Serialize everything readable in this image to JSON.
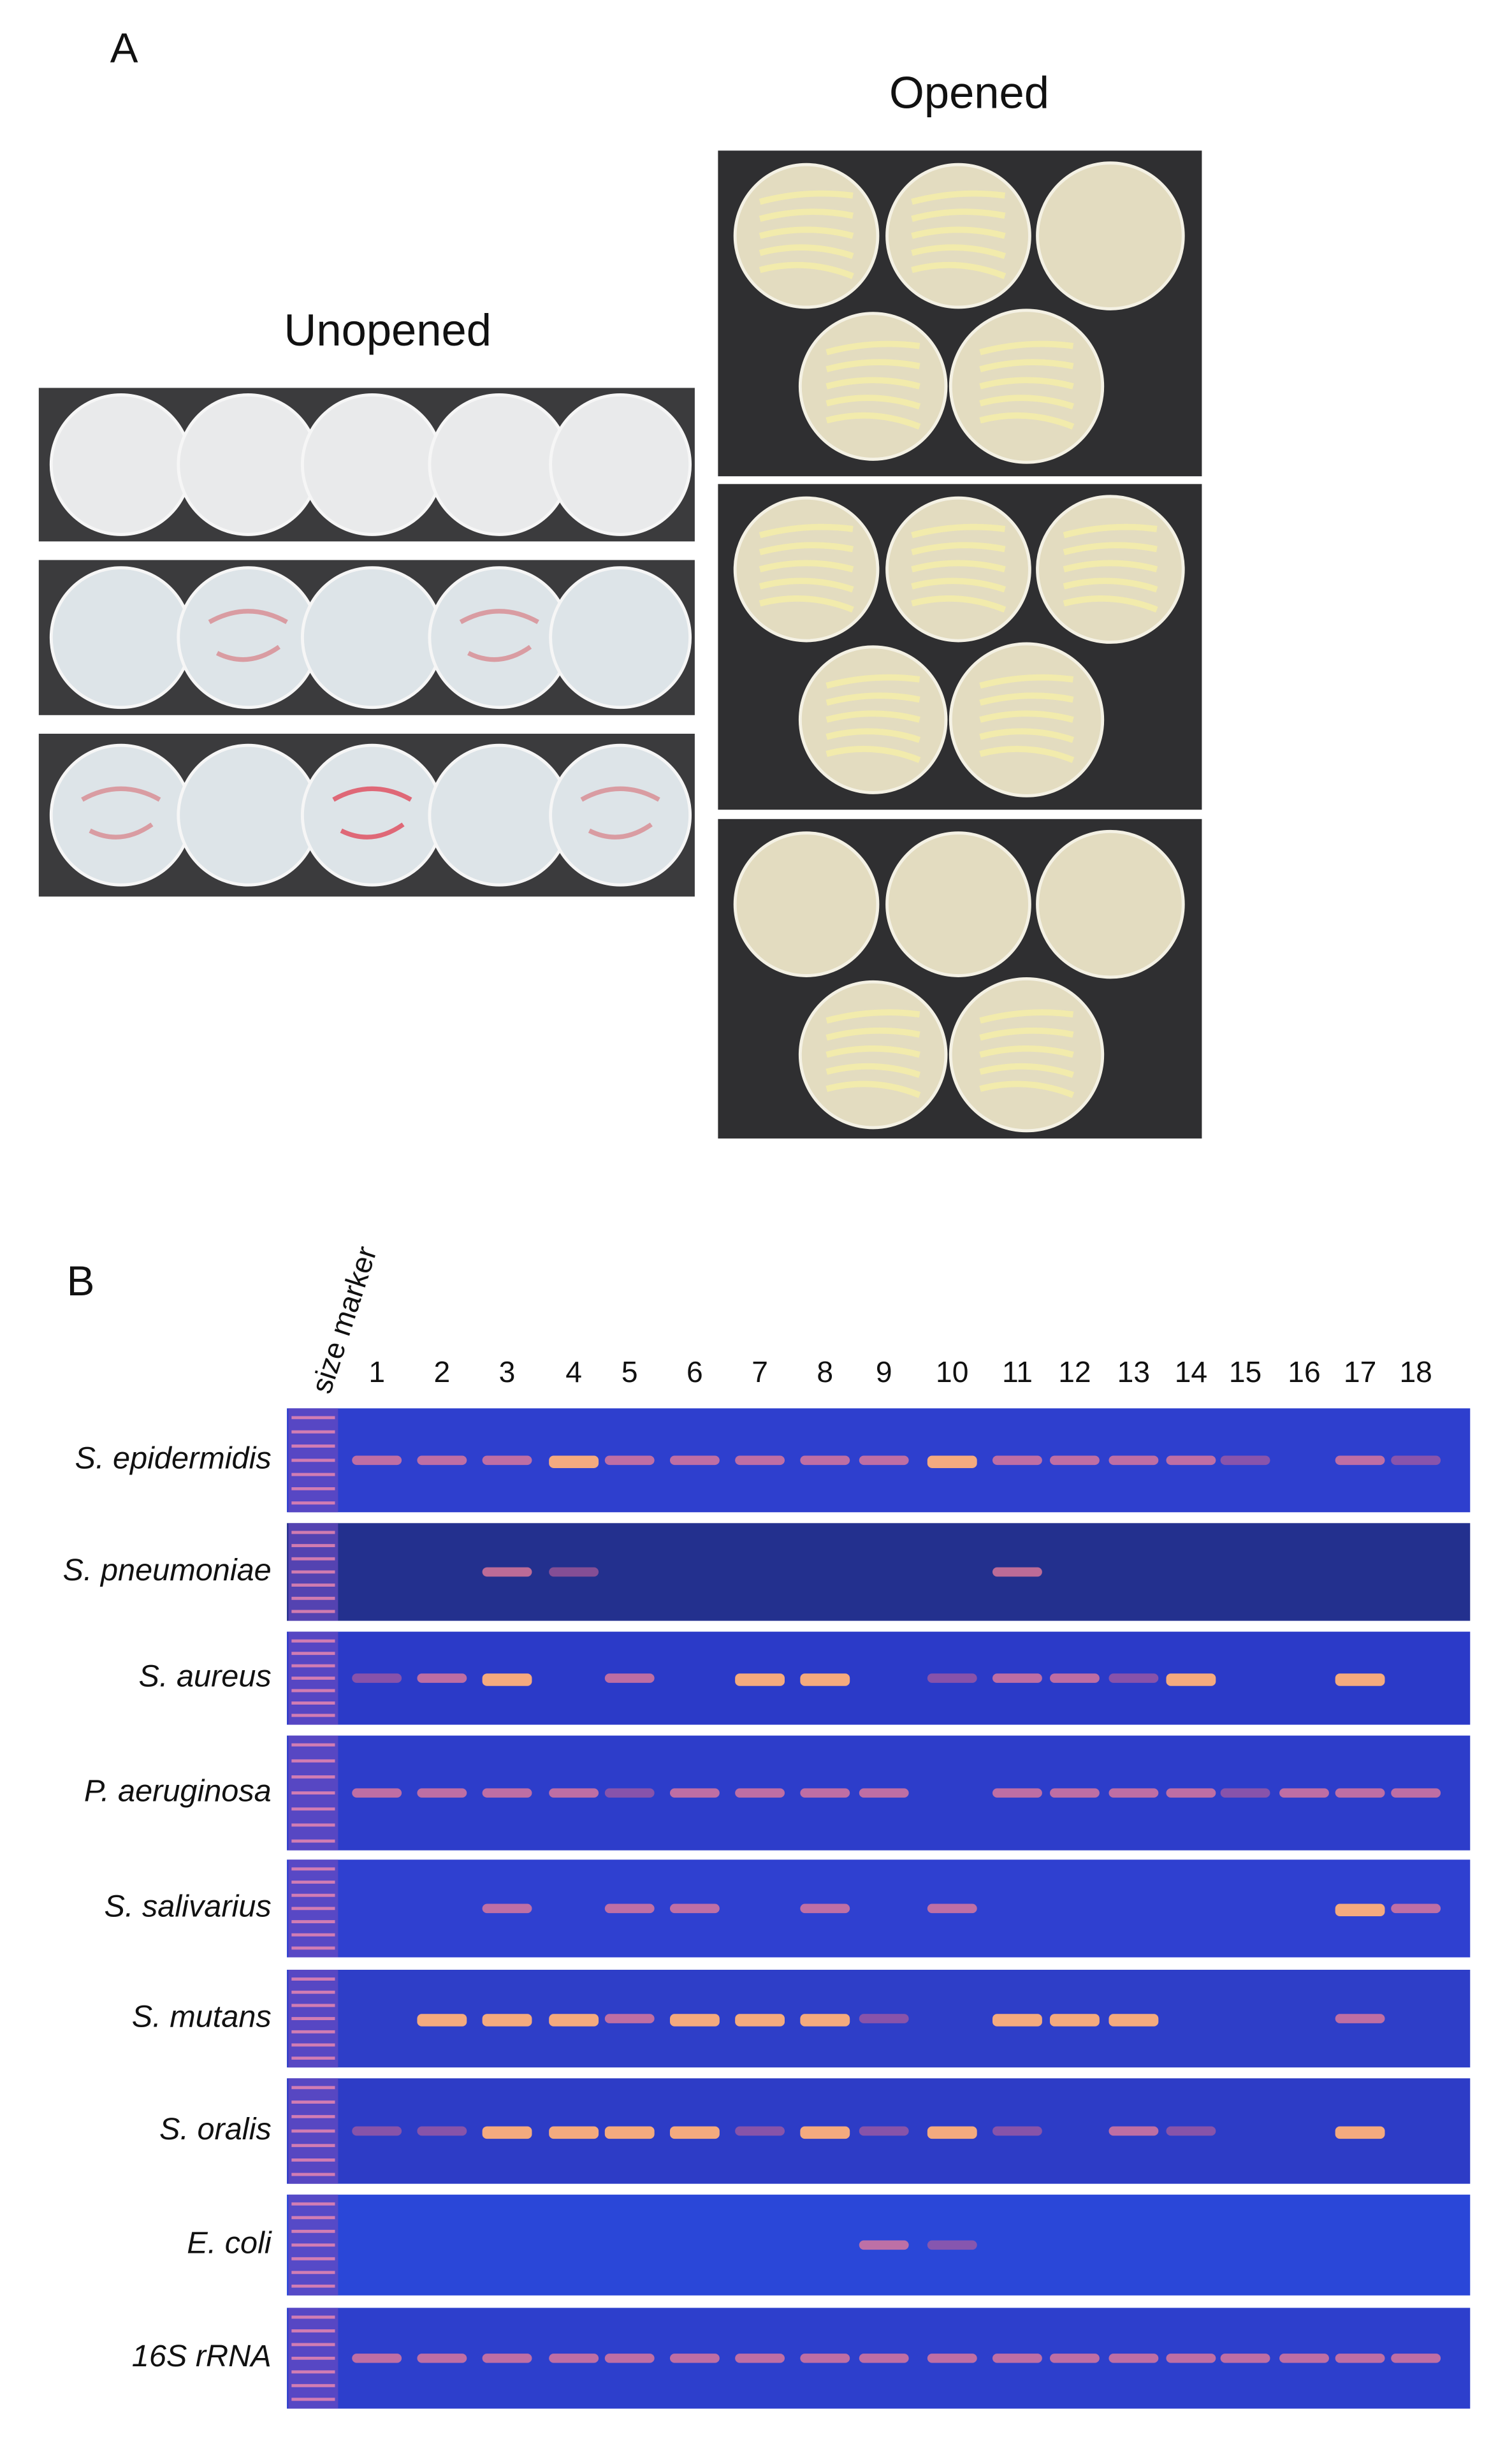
{
  "panel_a": {
    "label": "A",
    "opened_title": "Opened",
    "unopened_title": "Unopened"
  },
  "panel_b": {
    "label": "B",
    "marker_label": "size marker",
    "lanes": [
      "1",
      "2",
      "3",
      "4",
      "5",
      "6",
      "7",
      "8",
      "9",
      "10",
      "11",
      "12",
      "13",
      "14",
      "15",
      "16",
      "17",
      "18"
    ],
    "rows": [
      "S. epidermidis",
      "S. pneumoniae",
      "S. aureus",
      "P. aeruginosa",
      "S. salivarius",
      "S. mutans",
      "S. oralis",
      "E. coli",
      "16S rRNA"
    ]
  }
}
